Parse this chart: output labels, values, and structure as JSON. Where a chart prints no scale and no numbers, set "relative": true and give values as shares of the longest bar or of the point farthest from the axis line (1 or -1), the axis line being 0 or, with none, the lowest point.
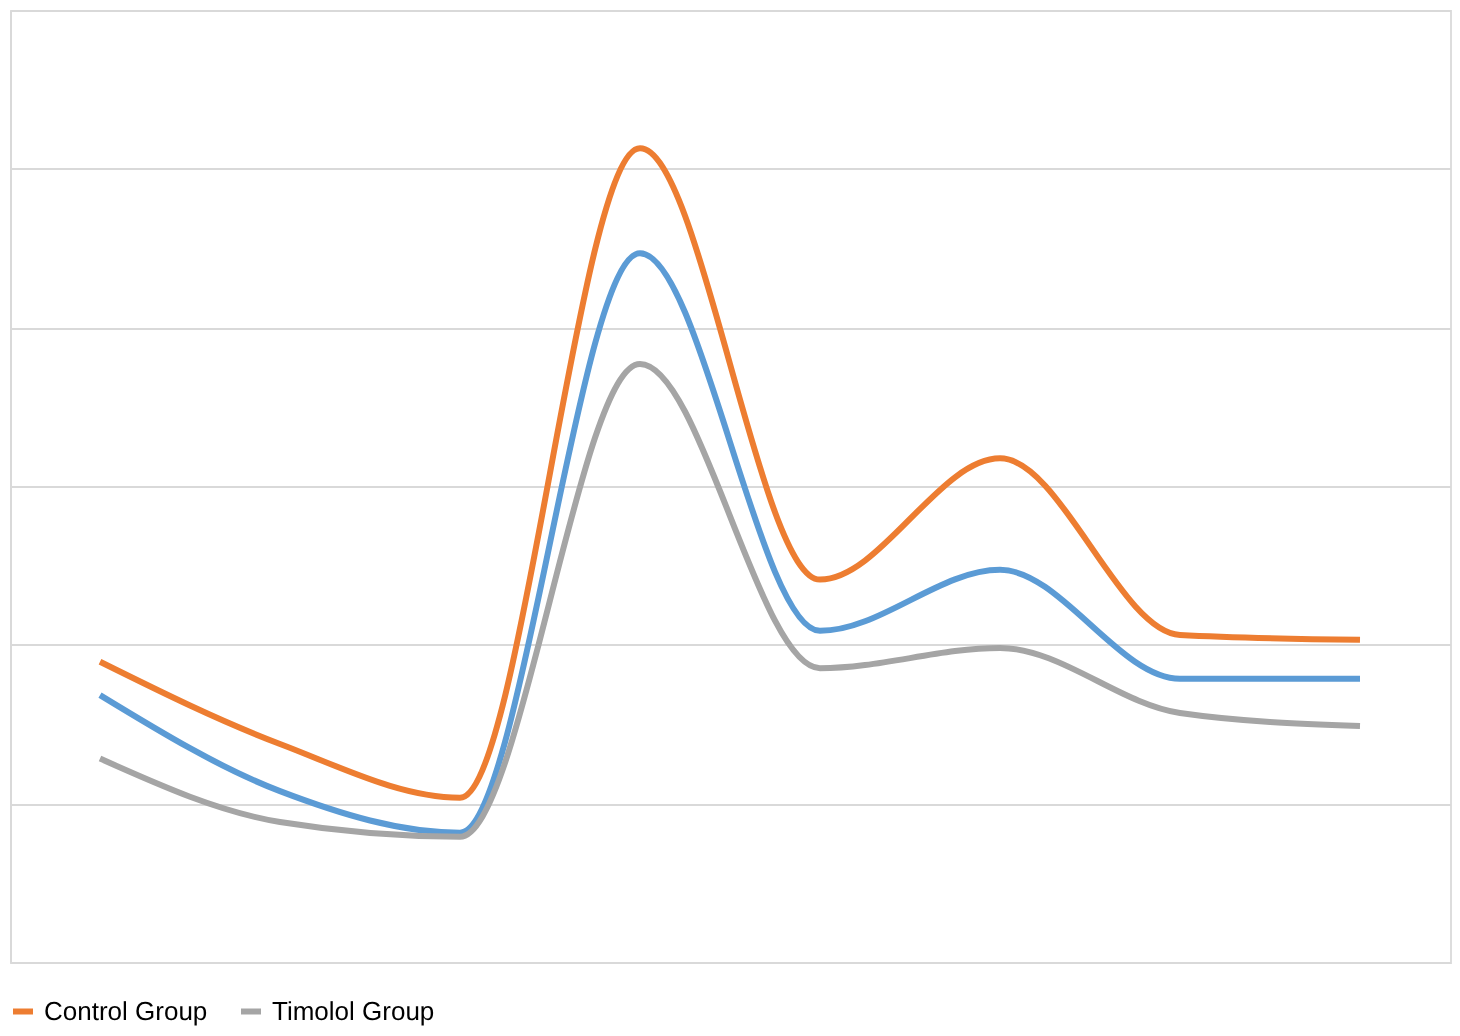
{
  "chart_data": {
    "type": "line",
    "relative": true,
    "categories": [
      null,
      null,
      null,
      null,
      null,
      null,
      null,
      null
    ],
    "series": [
      {
        "name": "Control Group",
        "color": "#ed7d31",
        "values": [
          0.369,
          0.268,
          0.202,
          1.0,
          0.47,
          0.619,
          0.402,
          0.396
        ]
      },
      {
        "color": "#5b9bd5",
        "values": [
          0.328,
          0.21,
          0.159,
          0.871,
          0.407,
          0.482,
          0.348,
          0.348
        ]
      },
      {
        "name": "Timolol Group",
        "color": "#a5a5a5",
        "values": [
          0.25,
          0.172,
          0.154,
          0.735,
          0.361,
          0.386,
          0.306,
          0.29
        ]
      }
    ],
    "grid": "y",
    "legend": "bottom",
    "marker": "none",
    "line_style": "solid"
  }
}
